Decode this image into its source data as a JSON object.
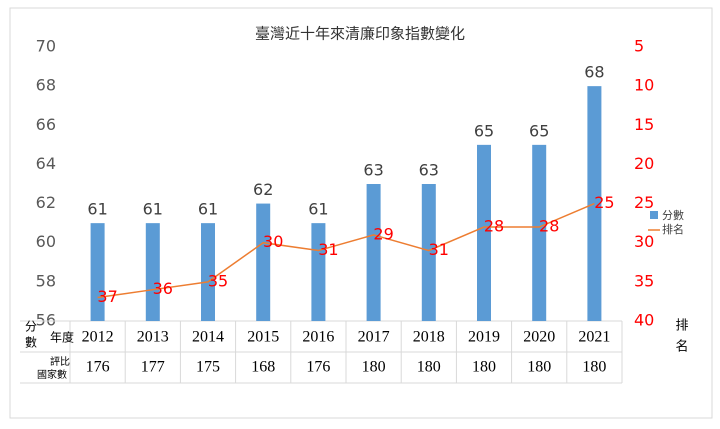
{
  "chart_data": {
    "type": "bar_line",
    "title": "臺灣近十年來清廉印象指數變化",
    "categories": [
      "2012",
      "2013",
      "2014",
      "2015",
      "2016",
      "2017",
      "2018",
      "2019",
      "2020",
      "2021"
    ],
    "series": [
      {
        "name": "分數",
        "color": "#5b9bd5",
        "type": "bar",
        "values": [
          61,
          61,
          61,
          62,
          61,
          63,
          63,
          65,
          65,
          68
        ]
      },
      {
        "name": "排名",
        "color": "#ed7d31",
        "type": "line",
        "axis": "y2",
        "label_color": "#ff0000",
        "values": [
          37,
          36,
          35,
          30,
          31,
          29,
          31,
          28,
          28,
          25
        ]
      }
    ],
    "ylim": [
      56,
      70
    ],
    "yticks": [
      56,
      58,
      60,
      62,
      64,
      66,
      68,
      70
    ],
    "y2lim": [
      40,
      5
    ],
    "y2ticks": [
      5,
      10,
      15,
      20,
      25,
      30,
      35,
      40
    ],
    "y2_color": "#ff0000",
    "y_label": "分數",
    "y2_label": "排名",
    "year_label": "年度",
    "count_label": [
      "評比",
      "國家數"
    ],
    "country_counts": [
      176,
      177,
      175,
      168,
      176,
      180,
      180,
      180,
      180,
      180
    ],
    "legend": "right"
  }
}
